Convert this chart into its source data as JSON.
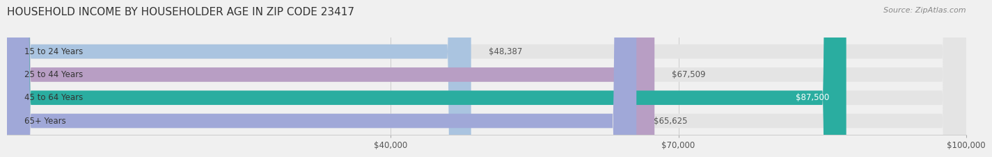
{
  "title": "HOUSEHOLD INCOME BY HOUSEHOLDER AGE IN ZIP CODE 23417",
  "source": "Source: ZipAtlas.com",
  "categories": [
    "15 to 24 Years",
    "25 to 44 Years",
    "45 to 64 Years",
    "65+ Years"
  ],
  "values": [
    48387,
    67509,
    87500,
    65625
  ],
  "bar_colors": [
    "#aac4e0",
    "#b89ec4",
    "#2aada0",
    "#a0a8d8"
  ],
  "label_colors": [
    "#555555",
    "#555555",
    "#ffffff",
    "#555555"
  ],
  "value_labels": [
    "$48,387",
    "$67,509",
    "$87,500",
    "$65,625"
  ],
  "xmin": 0,
  "xmax": 100000,
  "xticks": [
    40000,
    70000,
    100000
  ],
  "xtick_labels": [
    "$40,000",
    "$70,000",
    "$100,000"
  ],
  "bg_color": "#f0f0f0",
  "bar_bg_color": "#e4e4e4",
  "title_fontsize": 11,
  "source_fontsize": 8,
  "label_fontsize": 8.5,
  "value_fontsize": 8.5,
  "tick_fontsize": 8.5
}
